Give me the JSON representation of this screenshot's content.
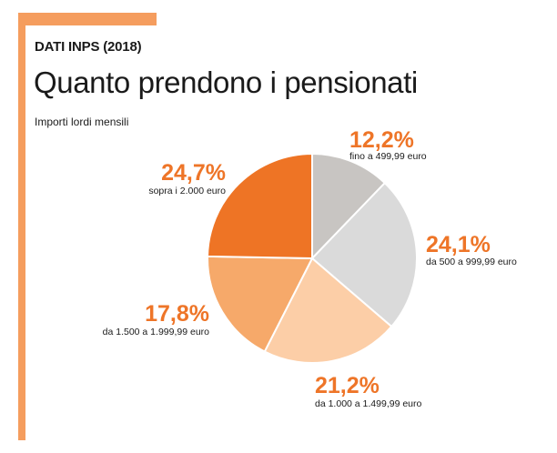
{
  "header": {
    "kicker": "DATI INPS (2018)",
    "title": "Quanto prendono i pensionati",
    "subtitle": "Importi lordi mensili"
  },
  "chart_data": {
    "type": "pie",
    "title": "Quanto prendono i pensionati",
    "subtitle": "Importi lordi mensili",
    "start_angle": "top, clockwise",
    "slices": [
      {
        "category": "fino a 499,99 euro",
        "value": 12.2,
        "label": "12,2%",
        "color": "#c8c5c2"
      },
      {
        "category": "da 500 a 999,99 euro",
        "value": 24.1,
        "label": "24,1%",
        "color": "#dadada"
      },
      {
        "category": "da 1.000 a 1.499,99 euro",
        "value": 21.2,
        "label": "21,2%",
        "color": "#fccea7"
      },
      {
        "category": "da 1.500 a 1.999,99 euro",
        "value": 17.8,
        "label": "17,8%",
        "color": "#f6a96a"
      },
      {
        "category": "sopra i 2.000 euro",
        "value": 24.7,
        "label": "24,7%",
        "color": "#ee7425"
      }
    ]
  }
}
